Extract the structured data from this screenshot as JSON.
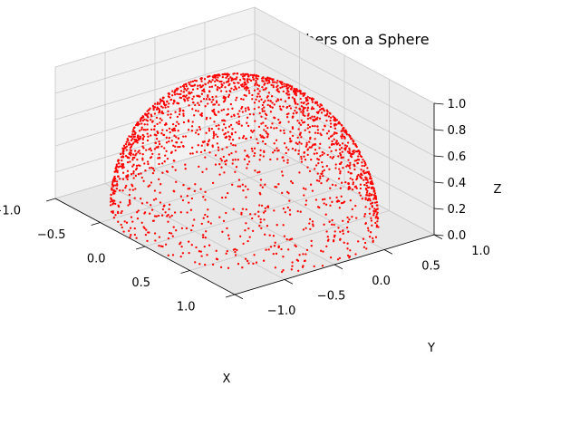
{
  "chart_data": {
    "type": "scatter",
    "projection": "3d",
    "title": "2000 Random Numbers on a Sphere",
    "xlabel": "X",
    "ylabel": "Y",
    "zlabel": "Z",
    "xlim": [
      -1,
      1
    ],
    "ylim": [
      -1,
      1
    ],
    "zlim": [
      0,
      1
    ],
    "xticks": [
      "−1.0",
      "−0.5",
      "0.0",
      "0.5",
      "1.0"
    ],
    "yticks": [
      "−1.0",
      "−0.5",
      "0.0",
      "0.5",
      "1.0"
    ],
    "zticks": [
      "0.0",
      "0.2",
      "0.4",
      "0.6",
      "0.8",
      "1.0"
    ],
    "series": [
      {
        "marker_color": "#ff0000",
        "point_count": 2000,
        "distribution": "uniform random points on the upper unit hemisphere (x² + y² + z² = 1, z ≥ 0)",
        "points_sample": [
          [
            0.0,
            0.0,
            1.0
          ],
          [
            0.5,
            0.5,
            0.707
          ],
          [
            -0.5,
            0.5,
            0.707
          ],
          [
            0.5,
            -0.5,
            0.707
          ],
          [
            -0.5,
            -0.5,
            0.707
          ],
          [
            1.0,
            0.0,
            0.0
          ],
          [
            -1.0,
            0.0,
            0.0
          ],
          [
            0.0,
            1.0,
            0.0
          ],
          [
            0.0,
            -1.0,
            0.0
          ]
        ]
      }
    ],
    "grid": true
  }
}
